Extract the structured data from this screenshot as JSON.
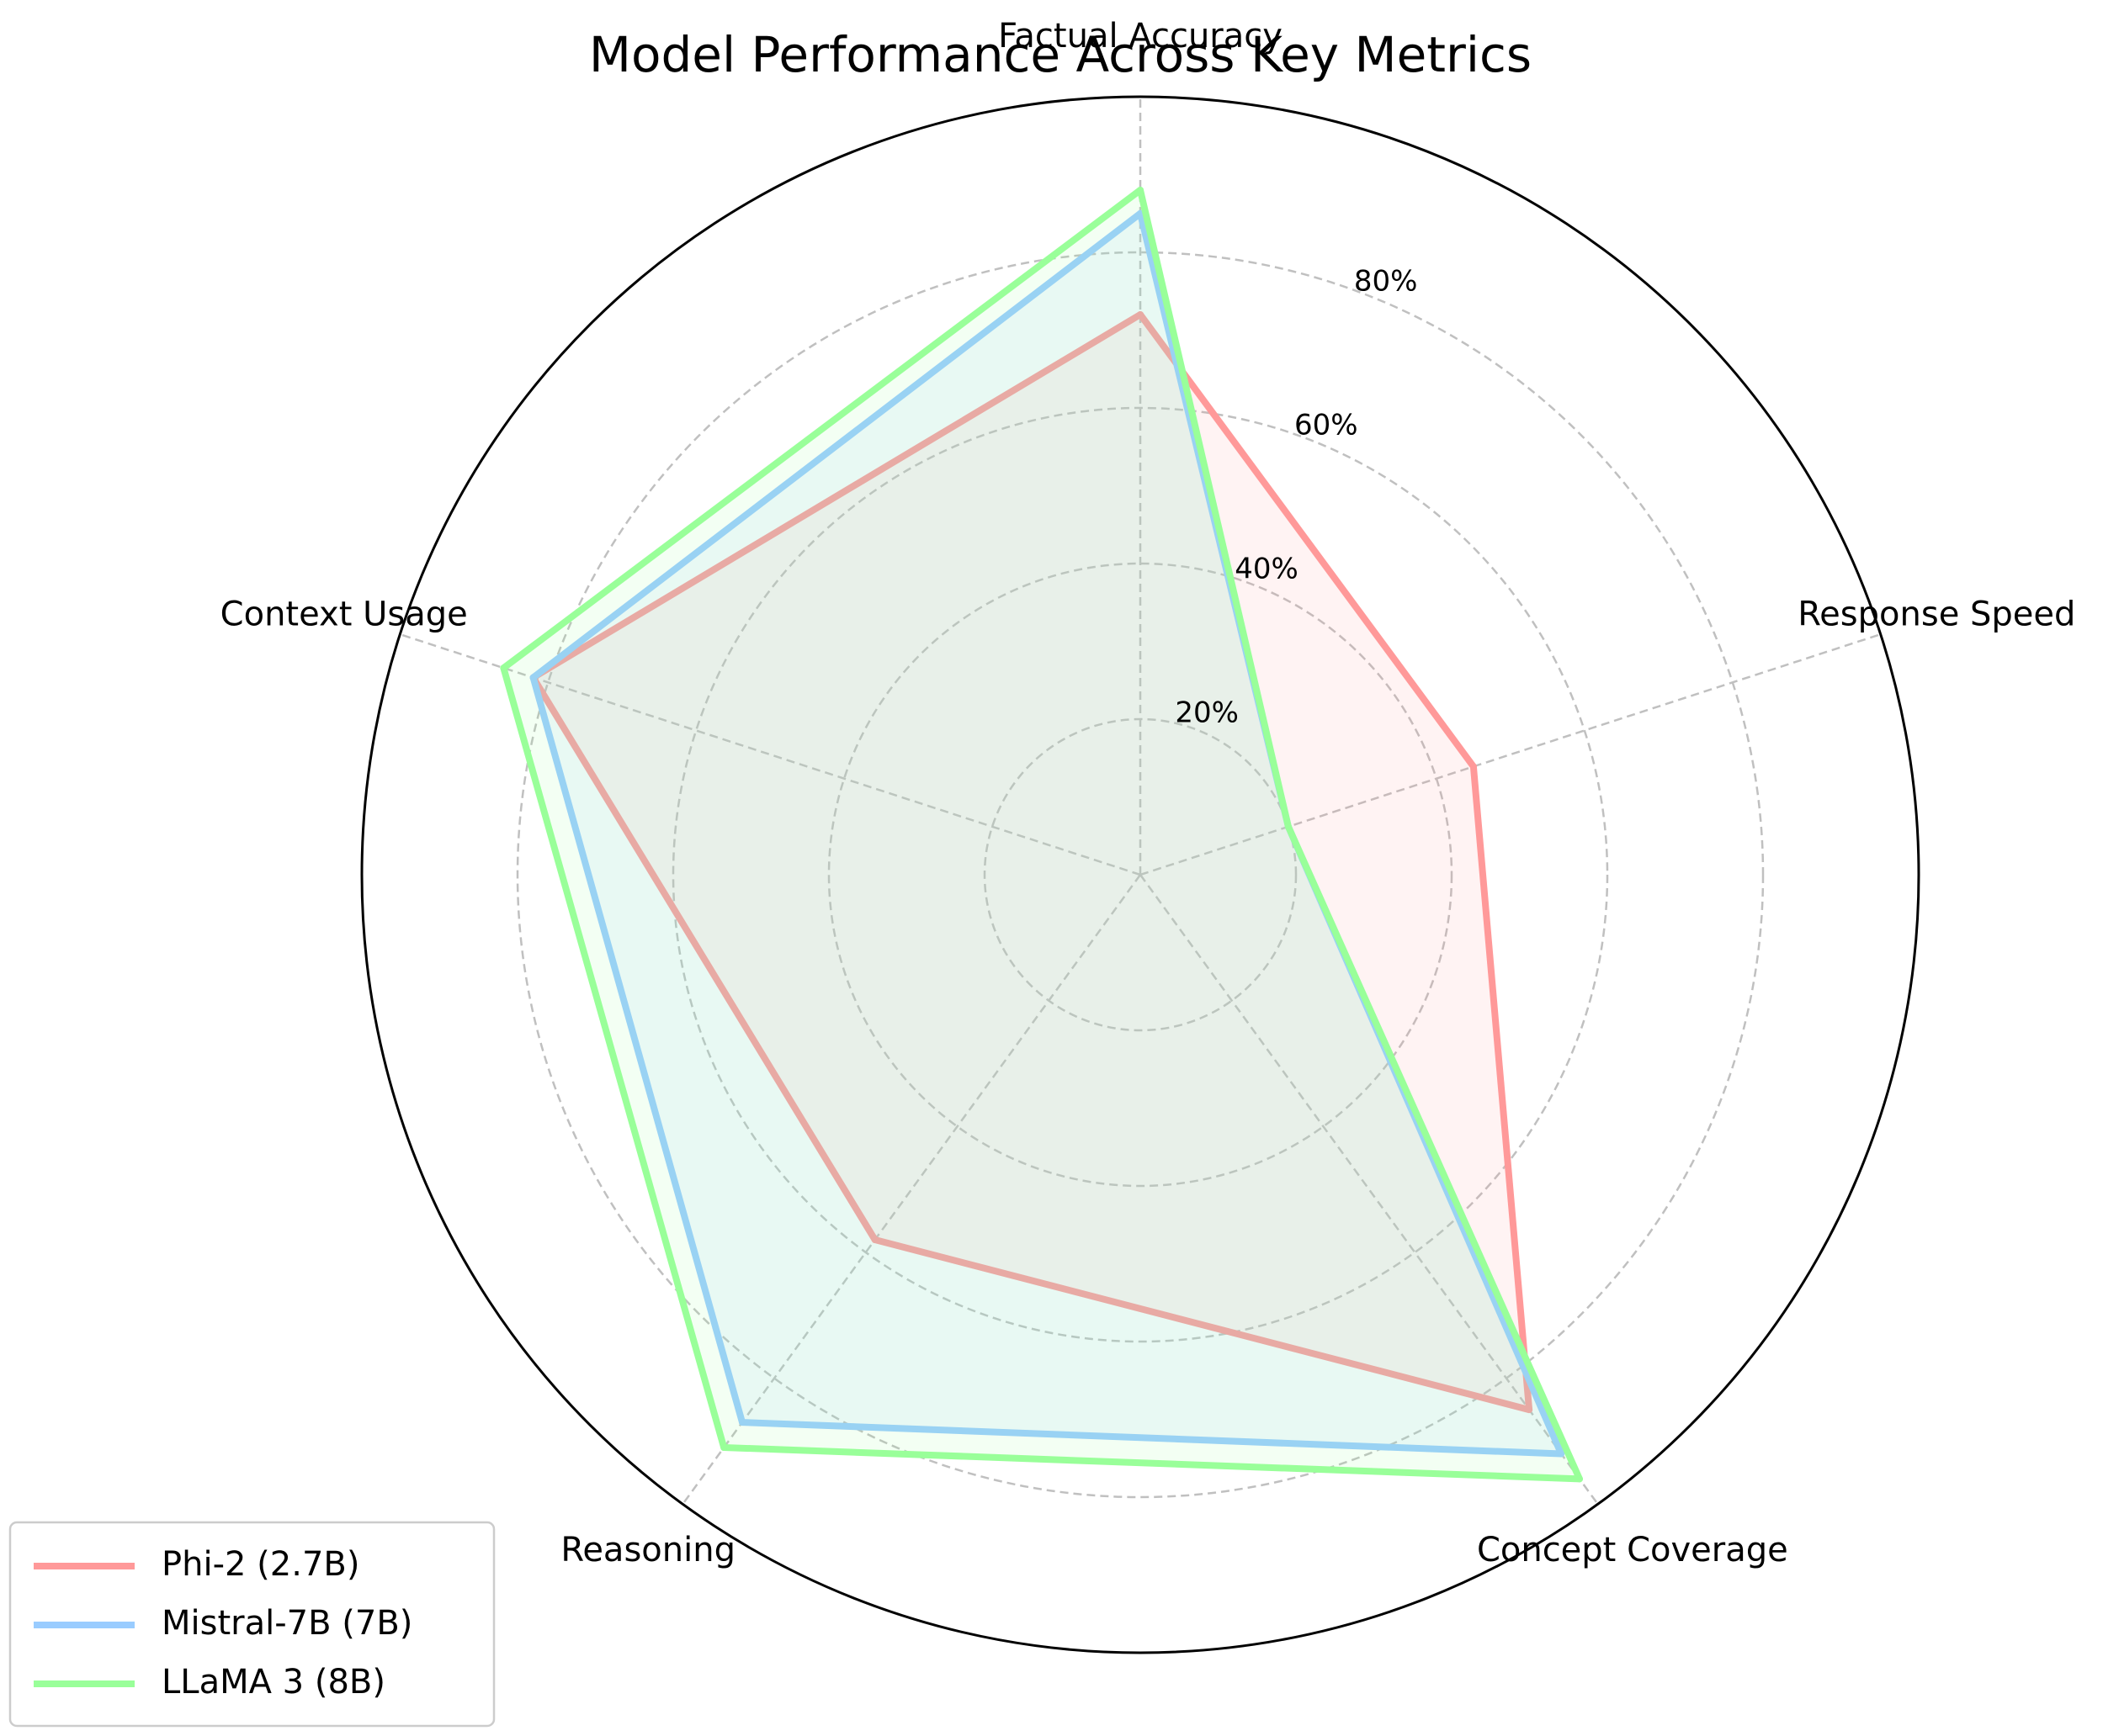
{
  "chart_data": {
    "type": "radar",
    "title": "Model Performance Across Key Metrics",
    "axes": [
      "Factual Accuracy",
      "Response Speed",
      "Concept Coverage",
      "Reasoning",
      "Context Usage"
    ],
    "rlim": [
      0,
      100
    ],
    "r_ticks": [
      20,
      40,
      60,
      80
    ],
    "r_tick_labels": [
      "20%",
      "40%",
      "60%",
      "80%"
    ],
    "grid": true,
    "legend_position": "lower-left",
    "series": [
      {
        "name": "Phi-2 (2.7B)",
        "color": "#ff9999",
        "values": [
          72,
          45,
          85,
          58,
          82
        ]
      },
      {
        "name": "Mistral-7B (7B)",
        "color": "#99ccff",
        "values": [
          85,
          20,
          92,
          87,
          82
        ]
      },
      {
        "name": "LLaMA 3 (8B)",
        "color": "#99ff99",
        "values": [
          88,
          20,
          96,
          91,
          86
        ]
      }
    ]
  }
}
